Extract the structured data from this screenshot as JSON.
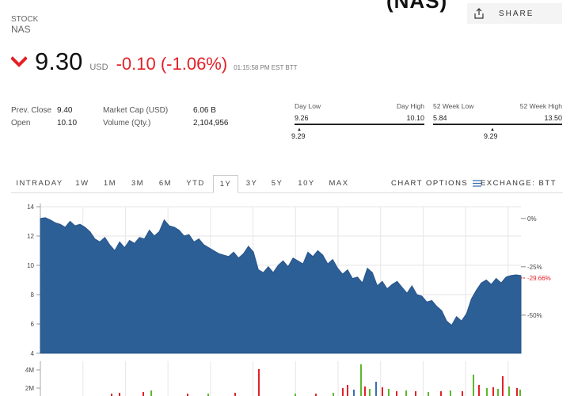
{
  "header": {
    "title_partial": "(NAS)",
    "share_label": "SHARE",
    "stock_label": "STOCK",
    "exchange_name": "NAS"
  },
  "quote": {
    "price": "9.30",
    "currency": "USD",
    "change": "-0.10 (-1.06%)",
    "timestamp": "01:15:58 PM EST BTT",
    "down_color": "#e32127"
  },
  "stats": {
    "prev_close_label": "Prev. Close",
    "prev_close": "9.40",
    "open_label": "Open",
    "open": "10.10",
    "market_cap_label": "Market Cap (USD)",
    "market_cap": "6.06 B",
    "volume_label": "Volume (Qty.)",
    "volume": "2,104,956"
  },
  "day_range": {
    "low_label": "Day Low",
    "high_label": "Day High",
    "low": "9.26",
    "high": "10.10",
    "current": "9.29"
  },
  "week52_range": {
    "low_label": "52 Week Low",
    "high_label": "52 Week High",
    "low": "5.84",
    "high": "13.50",
    "current": "9.29"
  },
  "tabs": [
    "INTRADAY",
    "1W",
    "1M",
    "3M",
    "6M",
    "YTD",
    "1Y",
    "3Y",
    "5Y",
    "10Y",
    "MAX"
  ],
  "active_tab": "1Y",
  "chart_options_label": "CHART OPTIONS",
  "exchange_label": "EXCHANGE: BTT",
  "chart_data": [
    {
      "type": "area",
      "y_ticks": [
        "14",
        "12",
        "10",
        "8",
        "6",
        "4"
      ],
      "ylim": [
        4,
        14
      ],
      "right_ticks": [
        "0%",
        "-25%",
        "-50%"
      ],
      "current_pct_label": "-29.66%",
      "area_color": "#2c5f95",
      "values": [
        13.2,
        13.25,
        13.1,
        12.9,
        12.8,
        12.6,
        13.0,
        12.7,
        12.8,
        12.6,
        12.3,
        11.8,
        11.6,
        11.9,
        11.4,
        11.0,
        11.6,
        11.2,
        11.7,
        11.5,
        11.9,
        11.8,
        12.4,
        12.0,
        12.3,
        13.1,
        12.7,
        12.6,
        12.4,
        12.0,
        12.1,
        11.6,
        11.8,
        11.4,
        11.2,
        11.0,
        10.8,
        10.7,
        10.6,
        10.9,
        10.5,
        10.8,
        11.3,
        10.9,
        9.7,
        9.5,
        9.9,
        9.5,
        10.0,
        10.3,
        9.9,
        10.5,
        10.3,
        10.1,
        10.9,
        10.6,
        11.0,
        10.7,
        10.1,
        10.4,
        9.8,
        9.4,
        9.7,
        9.1,
        9.2,
        8.8,
        9.8,
        9.5,
        8.6,
        8.9,
        8.4,
        8.7,
        8.9,
        8.5,
        8.1,
        8.6,
        8.0,
        7.9,
        7.5,
        7.6,
        7.2,
        6.9,
        6.2,
        5.9,
        6.5,
        6.2,
        6.7,
        7.7,
        8.3,
        8.8,
        9.0,
        8.7,
        9.1,
        8.8,
        9.2,
        9.3,
        9.35,
        9.3
      ]
    },
    {
      "type": "bar",
      "y_ticks": [
        "4M",
        "2M"
      ],
      "ylim": [
        0,
        5
      ],
      "up_color": "#5cb82e",
      "down_color": "#e32127",
      "neutral_color": "#3a6fb0"
    }
  ]
}
